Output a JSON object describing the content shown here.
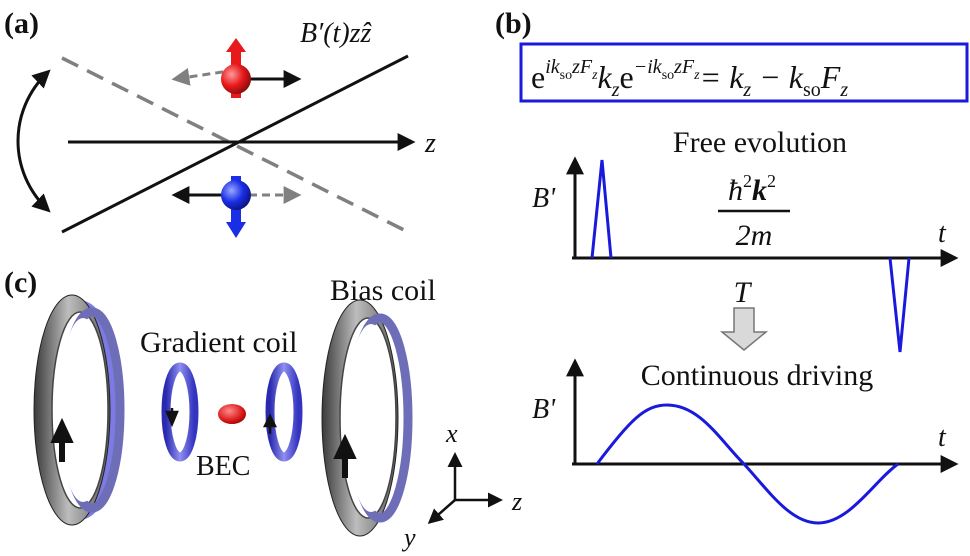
{
  "panels": {
    "a": {
      "label": "(a)",
      "field_label": "B′(t)zẑ",
      "axis_label": "z"
    },
    "b": {
      "label": "(b)",
      "equation": {
        "lhs_e1": "e",
        "lhs_sup1": "ik",
        "lhs_sup1_sub": "so",
        "lhs_sup1_tail": "zF",
        "lhs_sup1_tail_sub": "z",
        "lhs_mid": "k",
        "lhs_mid_sub": "z",
        "lhs_e2": "e",
        "lhs_sup2": "−ik",
        "lhs_sup2_sub": "so",
        "lhs_sup2_tail": "zF",
        "lhs_sup2_tail_sub": "z",
        "rhs": "= k",
        "rhs_sub1": "z",
        "rhs_mid": " − k",
        "rhs_sub2": "so",
        "rhs_tail": "F",
        "rhs_sub3": "z"
      },
      "top_plot": {
        "title": "Free evolution",
        "ylabel": "B'",
        "xlabel": "t",
        "frac_num": "ħ",
        "frac_num_sup": "2",
        "frac_num_k": "k",
        "frac_num_k_sup": "2",
        "frac_den": "2m"
      },
      "period_label": "T",
      "bottom_plot": {
        "title": "Continuous driving",
        "ylabel": "B'",
        "xlabel": "t"
      }
    },
    "c": {
      "label": "(c)",
      "bias_coil_label": "Bias coil",
      "gradient_coil_label": "Gradient coil",
      "bec_label": "BEC",
      "axes": {
        "x": "x",
        "y": "y",
        "z": "z"
      }
    }
  },
  "colors": {
    "spin_up": "#e8191b",
    "spin_down": "#1a2ee6",
    "pulse": "#1a1adc",
    "box_border": "#1a1adc",
    "dashed": "#808080",
    "coil_gray": "#6e6e6e",
    "coil_blue": "#5a5adc"
  }
}
